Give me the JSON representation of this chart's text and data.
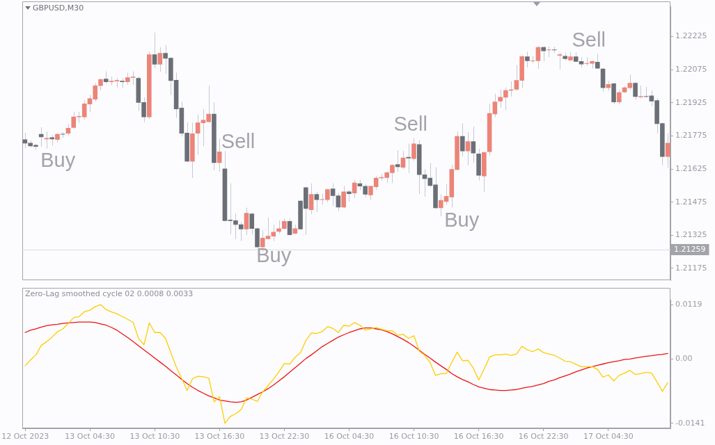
{
  "chart_data": [
    {
      "type": "candlestick",
      "title": "GBPUSD,M30",
      "categories": [
        null,
        null,
        null,
        null,
        null,
        null,
        null,
        null,
        null,
        null,
        null,
        null,
        null,
        null,
        null,
        null,
        null,
        null,
        null,
        null,
        null,
        null,
        null,
        null,
        null,
        null,
        null,
        null,
        null,
        null,
        null,
        null,
        null,
        null,
        null,
        null,
        null,
        null,
        null,
        null,
        null,
        null,
        null,
        null,
        null,
        null,
        null,
        null,
        null,
        null,
        null,
        null,
        null,
        null,
        null,
        null,
        null,
        null,
        null,
        null,
        null,
        null,
        null,
        null,
        null,
        null,
        null,
        null,
        null,
        null,
        null,
        null,
        null,
        null,
        null,
        null,
        null,
        null,
        null,
        null,
        null,
        null,
        null,
        null,
        null,
        null,
        null,
        null,
        null,
        null,
        null,
        null,
        null,
        null,
        null,
        null,
        null,
        null,
        null,
        null,
        null,
        null,
        null,
        null,
        null,
        null,
        null,
        null,
        null,
        null,
        null,
        null,
        null,
        null,
        null,
        null,
        null,
        null,
        null,
        null
      ],
      "series": [
        {
          "type": "candlestick",
          "ohlc": [
            [
              1.21759,
              1.21789,
              1.21719,
              1.21741
            ],
            [
              1.21743,
              1.21755,
              1.21723,
              1.21728
            ],
            [
              1.21734,
              1.2174,
              1.21711,
              1.21726
            ],
            [
              1.21783,
              1.21814,
              1.21726,
              1.21769
            ],
            [
              1.2176,
              1.21795,
              1.21718,
              1.21765
            ],
            [
              1.21768,
              1.21779,
              1.21731,
              1.2176
            ],
            [
              1.21757,
              1.21787,
              1.21746,
              1.21783
            ],
            [
              1.21783,
              1.21792,
              1.21767,
              1.21781
            ],
            [
              1.21786,
              1.21829,
              1.21777,
              1.21811
            ],
            [
              1.21812,
              1.21884,
              1.21807,
              1.21862
            ],
            [
              1.2186,
              1.21884,
              1.21835,
              1.21864
            ],
            [
              1.2186,
              1.21935,
              1.21848,
              1.21921
            ],
            [
              1.21918,
              1.2196,
              1.21882,
              1.21945
            ],
            [
              1.2194,
              1.22014,
              1.2193,
              1.22003
            ],
            [
              1.22001,
              1.22036,
              1.21982,
              1.22031
            ],
            [
              1.22034,
              1.22067,
              1.22011,
              1.22019
            ],
            [
              1.22019,
              1.22043,
              1.22004,
              1.22024
            ],
            [
              1.22022,
              1.22037,
              1.21994,
              1.22027
            ],
            [
              1.22024,
              1.22037,
              1.21991,
              1.22019
            ],
            [
              1.22019,
              1.22061,
              1.22006,
              1.2204
            ],
            [
              1.22038,
              1.22067,
              1.22006,
              1.22043
            ],
            [
              1.22037,
              1.22044,
              1.21888,
              1.21925
            ],
            [
              1.21927,
              1.2195,
              1.21836,
              1.2186
            ],
            [
              1.2186,
              1.22156,
              1.21851,
              1.22144
            ],
            [
              1.22144,
              1.22243,
              1.22082,
              1.22098
            ],
            [
              1.22098,
              1.22176,
              1.22065,
              1.2215
            ],
            [
              1.2215,
              1.22186,
              1.22055,
              1.22125
            ],
            [
              1.22128,
              1.22131,
              1.2196,
              1.22024
            ],
            [
              1.22028,
              1.22061,
              1.21857,
              1.21896
            ],
            [
              1.21902,
              1.2193,
              1.21772,
              1.21786
            ],
            [
              1.21789,
              1.21836,
              1.21655,
              1.21659
            ],
            [
              1.21659,
              1.21835,
              1.21585,
              1.21786
            ],
            [
              1.21786,
              1.21872,
              1.21689,
              1.21835
            ],
            [
              1.21833,
              1.21896,
              1.21728,
              1.21847
            ],
            [
              1.21838,
              1.22003,
              1.21835,
              1.21875
            ],
            [
              1.21875,
              1.21927,
              1.21619,
              1.21653
            ],
            [
              1.21653,
              1.21762,
              1.21613,
              1.21704
            ],
            [
              1.21627,
              1.21706,
              1.21388,
              1.2139
            ],
            [
              1.21395,
              1.2156,
              1.21329,
              1.2139
            ],
            [
              1.21392,
              1.21423,
              1.21308,
              1.21372
            ],
            [
              1.21374,
              1.21385,
              1.21299,
              1.21352
            ],
            [
              1.21352,
              1.2145,
              1.21326,
              1.21426
            ],
            [
              1.21423,
              1.21426,
              1.21329,
              1.21354
            ],
            [
              1.21356,
              1.21359,
              1.21268,
              1.21271
            ],
            [
              1.21271,
              1.21346,
              1.21251,
              1.21313
            ],
            [
              1.21308,
              1.21405,
              1.21306,
              1.21322
            ],
            [
              1.2132,
              1.21372,
              1.21299,
              1.2134
            ],
            [
              1.21341,
              1.21392,
              1.21333,
              1.21356
            ],
            [
              1.21354,
              1.21401,
              1.2135,
              1.21389
            ],
            [
              1.21389,
              1.21401,
              1.21324,
              1.21326
            ],
            [
              1.21332,
              1.21372,
              1.21329,
              1.21356
            ],
            [
              1.21481,
              1.21484,
              1.2135,
              1.21352
            ],
            [
              1.21542,
              1.21545,
              1.21327,
              1.21445
            ],
            [
              1.21439,
              1.2156,
              1.21421,
              1.21511
            ],
            [
              1.21511,
              1.21521,
              1.2143,
              1.21485
            ],
            [
              1.21485,
              1.21513,
              1.21463,
              1.21488
            ],
            [
              1.21485,
              1.21536,
              1.21474,
              1.21533
            ],
            [
              1.21536,
              1.2156,
              1.21458,
              1.21503
            ],
            [
              1.21505,
              1.21517,
              1.21434,
              1.21451
            ],
            [
              1.21451,
              1.21548,
              1.21448,
              1.21523
            ],
            [
              1.21523,
              1.2153,
              1.21477,
              1.21512
            ],
            [
              1.21515,
              1.21576,
              1.21494,
              1.21563
            ],
            [
              1.2156,
              1.21576,
              1.21531,
              1.21546
            ],
            [
              1.21548,
              1.21557,
              1.21497,
              1.21509
            ],
            [
              1.21506,
              1.2155,
              1.21485,
              1.21548
            ],
            [
              1.21543,
              1.21594,
              1.21531,
              1.21585
            ],
            [
              1.21583,
              1.21603,
              1.21571,
              1.21588
            ],
            [
              1.21585,
              1.21615,
              1.21561,
              1.21609
            ],
            [
              1.21607,
              1.21647,
              1.21561,
              1.21643
            ],
            [
              1.21646,
              1.2171,
              1.21612,
              1.21634
            ],
            [
              1.21631,
              1.21707,
              1.21625,
              1.21676
            ],
            [
              1.21679,
              1.2174,
              1.21607,
              1.21673
            ],
            [
              1.21671,
              1.21765,
              1.21662,
              1.2174
            ],
            [
              1.21737,
              1.21755,
              1.21512,
              1.21598
            ],
            [
              1.216,
              1.21624,
              1.215,
              1.2158
            ],
            [
              1.21585,
              1.21652,
              1.21544,
              1.21549
            ],
            [
              1.21554,
              1.21633,
              1.21443,
              1.21448
            ],
            [
              1.21448,
              1.21511,
              1.21412,
              1.21484
            ],
            [
              1.21476,
              1.21557,
              1.21463,
              1.21502
            ],
            [
              1.21497,
              1.21643,
              1.21451,
              1.21624
            ],
            [
              1.21621,
              1.21795,
              1.21619,
              1.21774
            ],
            [
              1.21774,
              1.21832,
              1.21682,
              1.21705
            ],
            [
              1.21705,
              1.21792,
              1.21641,
              1.2175
            ],
            [
              1.2175,
              1.21817,
              1.21653,
              1.21696
            ],
            [
              1.21694,
              1.21716,
              1.21573,
              1.21595
            ],
            [
              1.21592,
              1.21705,
              1.21521,
              1.21701
            ],
            [
              1.21702,
              1.21921,
              1.21686,
              1.21878
            ],
            [
              1.21873,
              1.21966,
              1.2186,
              1.2193
            ],
            [
              1.21931,
              1.21985,
              1.21903,
              1.21951
            ],
            [
              1.21949,
              1.21994,
              1.21891,
              1.21982
            ],
            [
              1.2198,
              1.22021,
              1.21953,
              1.21985
            ],
            [
              1.21985,
              1.22096,
              1.21978,
              1.22027
            ],
            [
              1.22025,
              1.2214,
              1.21991,
              1.22135
            ],
            [
              1.22134,
              1.22156,
              1.22085,
              1.22114
            ],
            [
              1.22113,
              1.22136,
              1.22103,
              1.22116
            ],
            [
              1.22114,
              1.22182,
              1.22079,
              1.22177
            ],
            [
              1.22177,
              1.22182,
              1.22113,
              1.22159
            ],
            [
              1.22163,
              1.22179,
              1.22132,
              1.22165
            ],
            [
              1.22165,
              1.22179,
              1.22151,
              1.22163
            ],
            [
              1.22138,
              1.22153,
              1.22077,
              1.22144
            ],
            [
              1.22137,
              1.22153,
              1.22116,
              1.22123
            ],
            [
              1.22117,
              1.22153,
              1.22113,
              1.22134
            ],
            [
              1.22134,
              1.22153,
              1.22108,
              1.22111
            ],
            [
              1.22113,
              1.22131,
              1.22085,
              1.22099
            ],
            [
              1.22101,
              1.22131,
              1.22093,
              1.22104
            ],
            [
              1.22102,
              1.22116,
              1.2208,
              1.22113
            ],
            [
              1.2211,
              1.22147,
              1.22077,
              1.2208
            ],
            [
              1.22079,
              1.22082,
              1.21974,
              1.21992
            ],
            [
              1.21992,
              1.22024,
              1.21979,
              1.22009
            ],
            [
              1.22012,
              1.22015,
              1.21918,
              1.21927
            ],
            [
              1.21927,
              1.21982,
              1.21918,
              1.21972
            ],
            [
              1.21972,
              1.22,
              1.21969,
              1.21994
            ],
            [
              1.21992,
              1.22052,
              1.21983,
              1.22015
            ],
            [
              1.22015,
              1.22018,
              1.21939,
              1.21952
            ],
            [
              1.2195,
              1.22003,
              1.21945,
              1.21955
            ],
            [
              1.21955,
              1.21997,
              1.21945,
              1.21952
            ],
            [
              1.21957,
              1.21982,
              1.21909,
              1.21931
            ],
            [
              1.21936,
              1.21945,
              1.21786,
              1.21829
            ],
            [
              1.21832,
              1.21835,
              1.21642,
              1.2168
            ],
            [
              1.2168,
              1.21786,
              1.21631,
              1.21743
            ]
          ],
          "colors": [
            "#6b6f77",
            "#6b6f77",
            "#6b6f77",
            "#6b6f77",
            "#ec8478",
            "#6b6f77",
            "#ec8478",
            "#6b6f77",
            "#ec8478",
            "#ec8478",
            "#ec8478",
            "#ec8478",
            "#ec8478",
            "#ec8478",
            "#ec8478",
            "#6b6f77",
            "#ec8478",
            "#ec8478",
            "#6b6f77",
            "#ec8478",
            "#ec8478",
            "#6b6f77",
            "#6b6f77",
            "#ec8478",
            "#6b6f77",
            "#ec8478",
            "#6b6f77",
            "#6b6f77",
            "#6b6f77",
            "#6b6f77",
            "#6b6f77",
            "#ec8478",
            "#ec8478",
            "#ec8478",
            "#ec8478",
            "#6b6f77",
            "#ec8478",
            "#6b6f77",
            "#6b6f77",
            "#6b6f77",
            "#6b6f77",
            "#ec8478",
            "#6b6f77",
            "#6b6f77",
            "#ec8478",
            "#ec8478",
            "#ec8478",
            "#ec8478",
            "#ec8478",
            "#6b6f77",
            "#ec8478",
            "#6b6f77",
            "#6b6f77",
            "#ec8478",
            "#6b6f77",
            "#ec8478",
            "#ec8478",
            "#6b6f77",
            "#6b6f77",
            "#ec8478",
            "#6b6f77",
            "#ec8478",
            "#6b6f77",
            "#6b6f77",
            "#ec8478",
            "#ec8478",
            "#ec8478",
            "#ec8478",
            "#ec8478",
            "#6b6f77",
            "#ec8478",
            "#6b6f77",
            "#ec8478",
            "#6b6f77",
            "#6b6f77",
            "#6b6f77",
            "#6b6f77",
            "#ec8478",
            "#ec8478",
            "#ec8478",
            "#ec8478",
            "#6b6f77",
            "#ec8478",
            "#6b6f77",
            "#6b6f77",
            "#ec8478",
            "#ec8478",
            "#ec8478",
            "#ec8478",
            "#ec8478",
            "#ec8478",
            "#ec8478",
            "#ec8478",
            "#6b6f77",
            "#ec8478",
            "#ec8478",
            "#6b6f77",
            "#ec8478",
            "#6b6f77",
            "#ec8478",
            "#6b6f77",
            "#ec8478",
            "#6b6f77",
            "#6b6f77",
            "#ec8478",
            "#ec8478",
            "#6b6f77",
            "#6b6f77",
            "#ec8478",
            "#6b6f77",
            "#ec8478",
            "#ec8478",
            "#ec8478",
            "#6b6f77",
            "#ec8478",
            "#6b6f77",
            "#6b6f77",
            "#6b6f77",
            "#6b6f77",
            "#ec8478"
          ]
        }
      ],
      "annotations": [
        "Buy",
        "Sell",
        "Buy",
        "Sell",
        "Buy",
        "Sell"
      ],
      "ylim": [
        1.2112,
        1.2236
      ],
      "yticks": [
        1.21175,
        1.21325,
        1.21475,
        1.21625,
        1.21775,
        1.21925,
        1.22075,
        1.22225
      ],
      "ref_lines": [
        {
          "axis": "y",
          "value": 1.21259,
          "label": "1.21259",
          "color": "#dcdcde"
        }
      ],
      "tick_labels": "y",
      "grid": false,
      "legend": false
    },
    {
      "type": "line",
      "title": "Zero-Lag smoothed cycle 02 0.0008 0.0033",
      "categories": [
        "12 Oct 2023",
        null,
        null,
        null,
        null,
        null,
        null,
        null,
        null,
        null,
        null,
        null,
        "13 Oct 04:30",
        null,
        null,
        null,
        null,
        null,
        null,
        null,
        null,
        null,
        null,
        null,
        "13 Oct 10:30",
        null,
        null,
        null,
        null,
        null,
        null,
        null,
        null,
        null,
        null,
        null,
        "13 Oct 16:30",
        null,
        null,
        null,
        null,
        null,
        null,
        null,
        null,
        null,
        null,
        null,
        "13 Oct 22:30",
        null,
        null,
        null,
        null,
        null,
        null,
        null,
        null,
        null,
        null,
        null,
        "16 Oct 04:30",
        null,
        null,
        null,
        null,
        null,
        null,
        null,
        null,
        null,
        null,
        null,
        "16 Oct 10:30",
        null,
        null,
        null,
        null,
        null,
        null,
        null,
        null,
        null,
        null,
        null,
        "16 Oct 16:30",
        null,
        null,
        null,
        null,
        null,
        null,
        null,
        null,
        null,
        null,
        null,
        "16 Oct 22:30",
        null,
        null,
        null,
        null,
        null,
        null,
        null,
        null,
        null,
        null,
        null,
        "17 Oct 04:30",
        null,
        null,
        null,
        null,
        null,
        null,
        null,
        null,
        null,
        null,
        null
      ],
      "series": [
        {
          "color": "#ffcc00",
          "values": [
            -0.0015,
            -0.0002,
            0.0009,
            0.003,
            0.0038,
            0.0048,
            0.006,
            0.0066,
            0.0078,
            0.0091,
            0.0093,
            0.0104,
            0.0107,
            0.0115,
            0.0119,
            0.0108,
            0.0103,
            0.0099,
            0.0093,
            0.0087,
            0.008,
            0.0045,
            0.0031,
            0.0079,
            0.0058,
            0.0058,
            0.0045,
            0.0013,
            -0.0018,
            -0.0043,
            -0.0069,
            -0.0043,
            -0.0038,
            -0.0039,
            -0.0042,
            -0.0094,
            -0.0083,
            -0.0141,
            -0.0126,
            -0.012,
            -0.0111,
            -0.0085,
            -0.0088,
            -0.0093,
            -0.0072,
            -0.0058,
            -0.0044,
            -0.0028,
            -0.001,
            -0.0011,
            0.0004,
            0.0014,
            0.0041,
            0.0057,
            0.0056,
            0.006,
            0.0071,
            0.0067,
            0.0058,
            0.0074,
            0.0072,
            0.008,
            0.0074,
            0.0063,
            0.0066,
            0.0069,
            0.0065,
            0.0062,
            0.0062,
            0.0052,
            0.0054,
            0.0045,
            0.0051,
            0.0017,
            0.0008,
            -0.0008,
            -0.0036,
            -0.0032,
            -0.0032,
            -0.0008,
            0.0015,
            -0.0004,
            -0.0003,
            -0.002,
            -0.0046,
            -0.0022,
            0.0004,
            0.0009,
            0.0009,
            0.0011,
            0.0008,
            0.0011,
            0.0028,
            0.002,
            0.0016,
            0.0022,
            0.0014,
            0.0011,
            0.0008,
            0.0002,
            -0.0005,
            -0.0006,
            -0.0012,
            -0.0017,
            -0.0017,
            -0.0017,
            -0.0023,
            -0.004,
            -0.0035,
            -0.0048,
            -0.0036,
            -0.0031,
            -0.0025,
            -0.0034,
            -0.0032,
            -0.0029,
            -0.0031,
            -0.005,
            -0.0071,
            -0.0052
          ]
        },
        {
          "color": "#ee1111",
          "values": [
            0.0058,
            0.0063,
            0.0066,
            0.007,
            0.0073,
            0.0075,
            0.0076,
            0.0078,
            0.0079,
            0.008,
            0.0081,
            0.0081,
            0.0081,
            0.008,
            0.0077,
            0.0074,
            0.0069,
            0.0063,
            0.0055,
            0.0047,
            0.0038,
            0.0029,
            0.002,
            0.0011,
            0.0002,
            -0.0007,
            -0.0016,
            -0.0026,
            -0.0035,
            -0.0045,
            -0.0054,
            -0.0062,
            -0.0069,
            -0.0075,
            -0.0081,
            -0.0085,
            -0.009,
            -0.0092,
            -0.0094,
            -0.0095,
            -0.0094,
            -0.009,
            -0.0084,
            -0.0078,
            -0.0072,
            -0.0065,
            -0.0057,
            -0.0048,
            -0.0039,
            -0.0029,
            -0.0019,
            -0.0009,
            0.0001,
            0.0009,
            0.0018,
            0.0027,
            0.0034,
            0.0041,
            0.0048,
            0.0053,
            0.0058,
            0.0062,
            0.0066,
            0.0068,
            0.0068,
            0.0066,
            0.0064,
            0.006,
            0.0055,
            0.0049,
            0.0043,
            0.0036,
            0.0028,
            0.0019,
            0.001,
            0.0002,
            -0.0007,
            -0.0015,
            -0.0023,
            -0.0032,
            -0.0039,
            -0.0045,
            -0.005,
            -0.0056,
            -0.0061,
            -0.0064,
            -0.0067,
            -0.0068,
            -0.0069,
            -0.0069,
            -0.0068,
            -0.0067,
            -0.0064,
            -0.0062,
            -0.006,
            -0.0057,
            -0.0054,
            -0.0049,
            -0.0046,
            -0.0041,
            -0.0037,
            -0.0033,
            -0.0028,
            -0.0024,
            -0.002,
            -0.0017,
            -0.0014,
            -0.0011,
            -0.0008,
            -0.0006,
            -0.0004,
            -0.0001,
            0,
            0.0002,
            0.0004,
            0.0006,
            0.0007,
            0.0009,
            0.001,
            0.0012
          ]
        }
      ],
      "ylim": [
        -0.0152,
        0.013
      ],
      "yticks": [
        -0.0141,
        {
          "value": 0,
          "label": "0.00"
        },
        0.0119
      ],
      "grid": false,
      "legend": false,
      "marker": "none"
    }
  ]
}
